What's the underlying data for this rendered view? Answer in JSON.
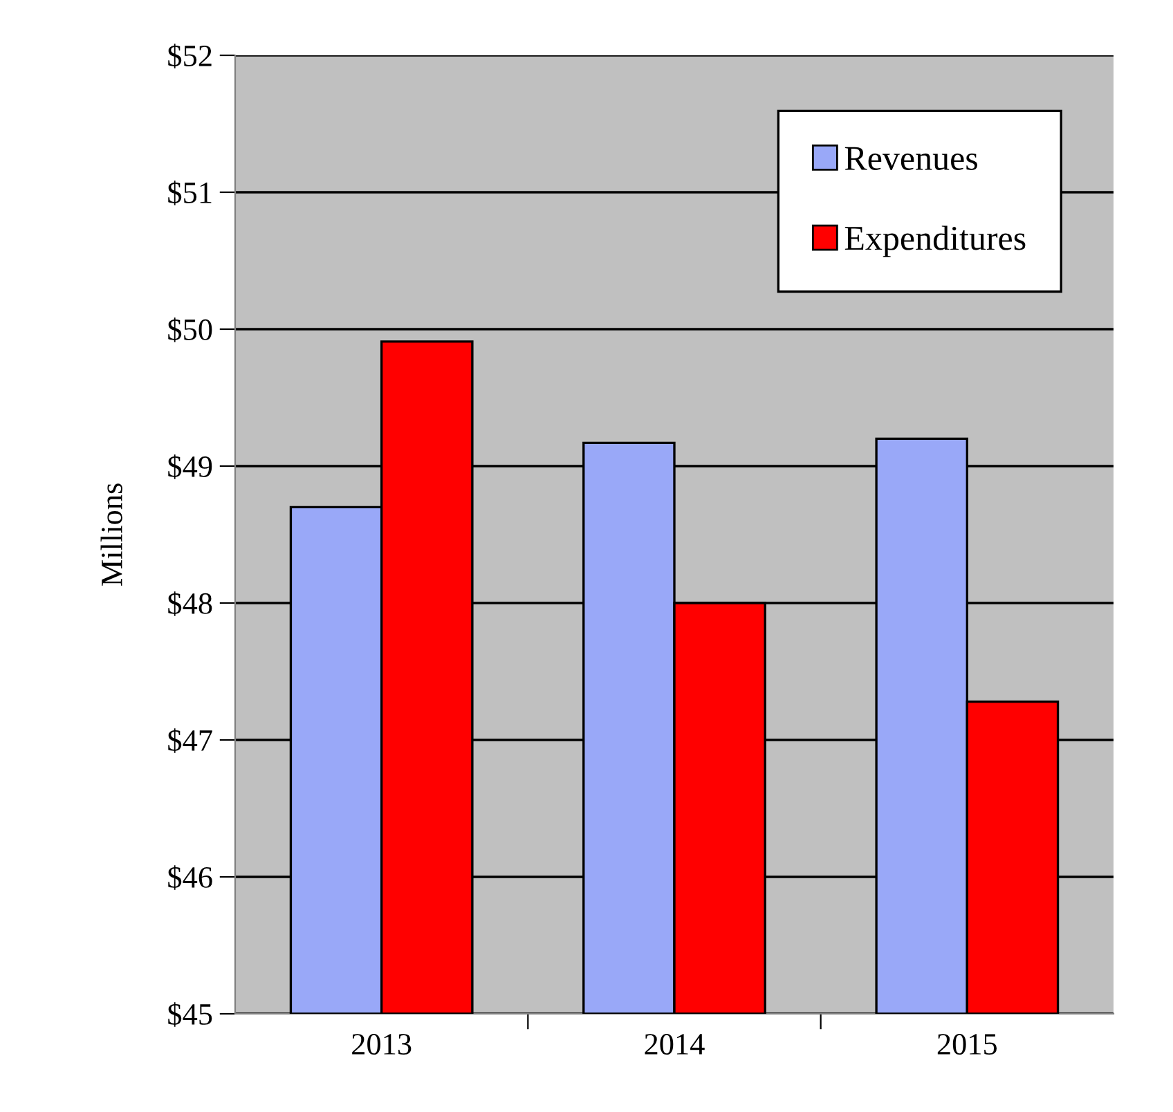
{
  "chart_data": {
    "type": "bar",
    "ylabel": "Millions",
    "categories": [
      "2013",
      "2014",
      "2015"
    ],
    "series": [
      {
        "name": "Revenues",
        "color": "#99a8f8",
        "values": [
          48.7,
          49.17,
          49.2
        ]
      },
      {
        "name": "Expenditures",
        "color": "#ff0000",
        "values": [
          49.91,
          48.0,
          47.28
        ]
      }
    ],
    "ylim": [
      45,
      52
    ],
    "yticks": [
      {
        "value": 45,
        "label": "$45"
      },
      {
        "value": 46,
        "label": "$46"
      },
      {
        "value": 47,
        "label": "$47"
      },
      {
        "value": 48,
        "label": "$48"
      },
      {
        "value": 49,
        "label": "$49"
      },
      {
        "value": 50,
        "label": "$50"
      },
      {
        "value": 51,
        "label": "$51"
      },
      {
        "value": 52,
        "label": "$52"
      }
    ],
    "grid": "y",
    "legend": "top right"
  }
}
